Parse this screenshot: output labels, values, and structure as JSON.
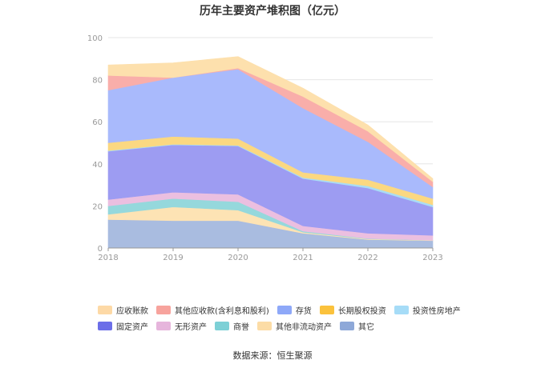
{
  "chart_data": {
    "type": "area",
    "stacked": true,
    "title": "历年主要资产堆积图（亿元）",
    "x": [
      "2018",
      "2019",
      "2020",
      "2021",
      "2022",
      "2023"
    ],
    "ylim": [
      0,
      100
    ],
    "yticks": [
      0,
      20,
      40,
      60,
      80,
      100
    ],
    "grid": true,
    "series": [
      {
        "name": "其它",
        "color": "#a9bce0",
        "values": [
          13.5,
          13,
          13,
          7,
          4,
          3.5
        ]
      },
      {
        "name": "其他非流动资产",
        "color": "#fde3b4",
        "values": [
          2.5,
          6.5,
          5,
          0.5,
          0.3,
          0.2
        ]
      },
      {
        "name": "商誉",
        "color": "#95d8dc",
        "values": [
          4,
          4,
          4,
          0.5,
          0.2,
          0
        ]
      },
      {
        "name": "无形资产",
        "color": "#ebbfe0",
        "values": [
          3,
          3,
          3.5,
          2.5,
          2.5,
          2.3
        ]
      },
      {
        "name": "固定资产",
        "color": "#9d9cf2",
        "values": [
          23,
          22.5,
          23,
          22.5,
          21.5,
          13.5
        ]
      },
      {
        "name": "投资性房地产",
        "color": "#a9dcf5",
        "values": [
          0.3,
          0.3,
          0.3,
          0.5,
          1,
          1
        ]
      },
      {
        "name": "长期股权投资",
        "color": "#fbd881",
        "values": [
          3.7,
          3.7,
          3.2,
          2.5,
          3,
          3
        ]
      },
      {
        "name": "存货",
        "color": "#a9bafc",
        "values": [
          25,
          28,
          33,
          30.5,
          18,
          5.5
        ]
      },
      {
        "name": "其他应收款(含利息和股利)",
        "color": "#f9aeaa",
        "values": [
          7,
          0,
          0.5,
          5.5,
          5,
          2.5
        ]
      },
      {
        "name": "应收账款",
        "color": "#fde0ad",
        "values": [
          5,
          7,
          5.5,
          4,
          3,
          1.5
        ]
      }
    ],
    "legend_order": [
      "应收账款",
      "其他应收款(含利息和股利)",
      "存货",
      "长期股权投资",
      "投资性房地产",
      "固定资产",
      "无形资产",
      "商誉",
      "其他非流动资产",
      "其它"
    ],
    "legend_colors": {
      "应收账款": "#fdd9a6",
      "其他应收款(含利息和股利)": "#f7a39d",
      "存货": "#8ea8f8",
      "长期股权投资": "#fbc23c",
      "投资性房地产": "#a6dcf7",
      "固定资产": "#6c6ee8",
      "无形资产": "#e6b5dc",
      "商誉": "#7dd0d6",
      "其他非流动资产": "#fcdca6",
      "其它": "#8ea8d8"
    }
  },
  "source": "数据来源：恒生聚源"
}
